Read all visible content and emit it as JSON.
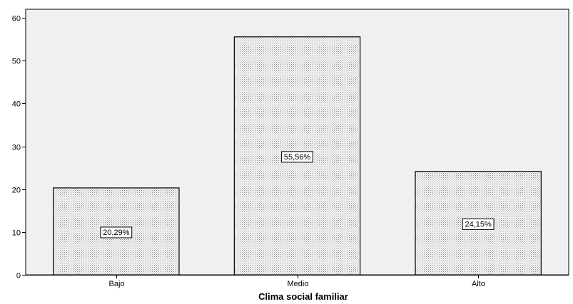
{
  "chart_data": {
    "type": "bar",
    "categories": [
      "Bajo",
      "Medio",
      "Alto"
    ],
    "values": [
      20.29,
      55.56,
      24.15
    ],
    "data_labels": [
      "20,29%",
      "55,56%",
      "24,15%"
    ],
    "title": "",
    "xlabel": "Clima social familiar",
    "ylabel": "",
    "ylim": [
      0,
      62
    ],
    "yticks": [
      0,
      10,
      20,
      30,
      40,
      50,
      60
    ],
    "grid": false,
    "legend": "none",
    "colors": {
      "plot_background": "#f0f0f0",
      "bar_fill": "#ffffff",
      "bar_pattern_dot": "#8a8a8a",
      "bar_stroke": "#000000"
    }
  }
}
